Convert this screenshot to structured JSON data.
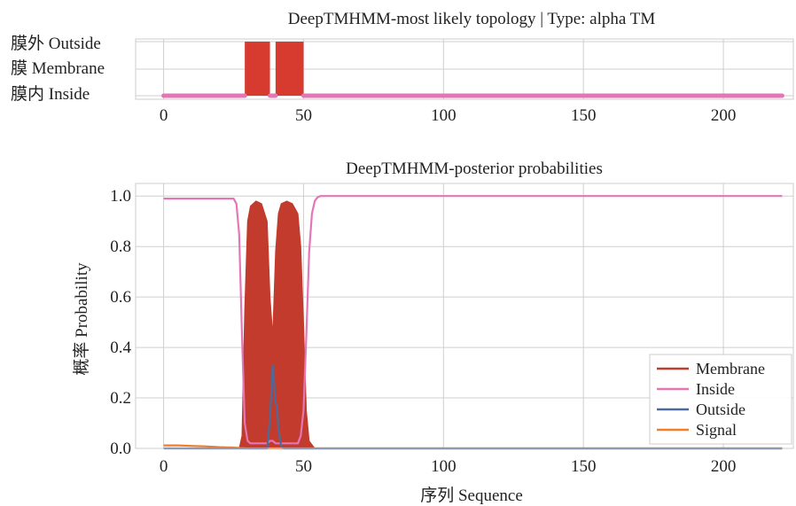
{
  "chart_data": [
    {
      "type": "line",
      "title": "DeepTMHMM-most likely topology | Type: alpha TM",
      "xlabel": "",
      "ylabel": "",
      "xlim": [
        -10,
        225
      ],
      "xticks": [
        "0",
        "50",
        "100",
        "150",
        "200"
      ],
      "xtick_values": [
        0,
        50,
        100,
        150,
        200
      ],
      "yticks": [
        "膜外 Outside",
        "膜 Membrane",
        "膜内 Inside"
      ],
      "grid": true,
      "colors": {
        "membrane": "#d73a2f",
        "inside": "#e377b5"
      },
      "membrane_segments": [
        [
          29,
          38
        ],
        [
          40,
          50
        ]
      ],
      "inside_segments": [
        [
          0,
          29
        ],
        [
          38,
          40
        ],
        [
          50,
          221
        ]
      ],
      "sequence_length": 221
    },
    {
      "type": "line",
      "title": "DeepTMHMM-posterior probabilities",
      "xlabel": "序列 Sequence",
      "ylabel": "概率 Probability",
      "xlim": [
        -10,
        225
      ],
      "ylim": [
        0,
        1.05
      ],
      "xticks": [
        "0",
        "50",
        "100",
        "150",
        "200"
      ],
      "xtick_values": [
        0,
        50,
        100,
        150,
        200
      ],
      "yticks": [
        "0.0",
        "0.2",
        "0.4",
        "0.6",
        "0.8",
        "1.0"
      ],
      "ytick_values": [
        0.0,
        0.2,
        0.4,
        0.6,
        0.8,
        1.0
      ],
      "grid": true,
      "legend_position": "bottom-right",
      "series": [
        {
          "name": "Membrane",
          "color": "#c23b2c",
          "fill": true,
          "x": [
            0,
            27,
            28,
            29,
            30,
            31,
            33,
            35,
            37,
            38,
            39,
            40,
            41,
            42,
            44,
            46,
            48,
            49,
            50,
            51,
            52,
            54,
            221
          ],
          "y": [
            0.0,
            0.0,
            0.05,
            0.55,
            0.9,
            0.96,
            0.98,
            0.97,
            0.9,
            0.6,
            0.45,
            0.78,
            0.93,
            0.97,
            0.98,
            0.97,
            0.93,
            0.8,
            0.5,
            0.15,
            0.03,
            0.0,
            0.0
          ]
        },
        {
          "name": "Inside",
          "color": "#e377b5",
          "x": [
            0,
            25,
            26,
            27,
            28,
            29,
            30,
            31,
            37,
            38,
            39,
            40,
            47,
            48,
            49,
            50,
            51,
            52,
            53,
            54,
            55,
            56,
            221
          ],
          "y": [
            0.99,
            0.99,
            0.97,
            0.85,
            0.45,
            0.1,
            0.03,
            0.02,
            0.02,
            0.03,
            0.03,
            0.02,
            0.02,
            0.02,
            0.05,
            0.15,
            0.45,
            0.78,
            0.93,
            0.98,
            0.995,
            1.0,
            1.0
          ]
        },
        {
          "name": "Outside",
          "color": "#4d6a9a",
          "x": [
            0,
            37,
            38,
            39,
            39.5,
            40,
            40.5,
            41,
            42,
            43,
            221
          ],
          "y": [
            0.0,
            0.0,
            0.12,
            0.33,
            0.26,
            0.18,
            0.17,
            0.08,
            0.01,
            0.0,
            0.0
          ]
        },
        {
          "name": "Signal",
          "color": "#f07f2c",
          "x": [
            0,
            5,
            10,
            15,
            20,
            25,
            30,
            221
          ],
          "y": [
            0.012,
            0.012,
            0.01,
            0.008,
            0.005,
            0.003,
            0.0,
            0.0
          ]
        }
      ]
    }
  ]
}
